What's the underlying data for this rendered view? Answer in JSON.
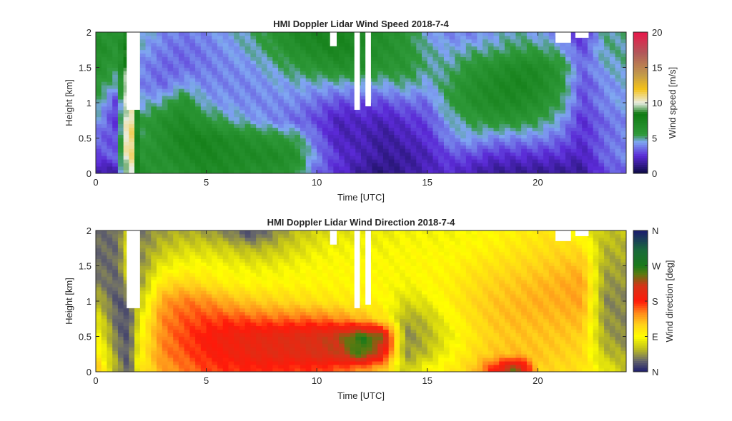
{
  "chart_data": [
    {
      "type": "heatmap",
      "title": "HMI Doppler Lidar Wind Speed  2018-7-4",
      "xlabel": "Time [UTC]",
      "ylabel": "Height [km]",
      "xlim": [
        0,
        24
      ],
      "ylim": [
        0,
        2
      ],
      "xticks": [
        "0",
        "5",
        "10",
        "15",
        "20"
      ],
      "yticks": [
        "0",
        "0.5",
        "1",
        "1.5",
        "2"
      ],
      "colorbar": {
        "label": "Wind speed [m/s]",
        "range": [
          0,
          20
        ],
        "ticks": [
          "0",
          "5",
          "10",
          "15",
          "20"
        ],
        "stops": [
          {
            "v": 0,
            "c": "#0a0a40"
          },
          {
            "v": 2.5,
            "c": "#5a2ad6"
          },
          {
            "v": 4.5,
            "c": "#7fa6f2"
          },
          {
            "v": 5.5,
            "c": "#2f9a3a"
          },
          {
            "v": 8.5,
            "c": "#0f7a12"
          },
          {
            "v": 10,
            "c": "#e9ede4"
          },
          {
            "v": 12,
            "c": "#f4c218"
          },
          {
            "v": 14,
            "c": "#c29a4a"
          },
          {
            "v": 17,
            "c": "#b05a5a"
          },
          {
            "v": 20,
            "c": "#e8174a"
          }
        ]
      },
      "time_h": [
        0,
        1,
        1.5,
        2,
        3,
        4,
        5,
        6,
        7,
        8,
        9,
        10,
        11,
        12,
        13,
        14,
        15,
        16,
        17,
        18,
        19,
        20,
        21,
        22,
        23,
        24
      ],
      "height_km": [
        0.05,
        0.25,
        0.5,
        0.75,
        1.0,
        1.25,
        1.5,
        1.75,
        1.95
      ],
      "values": [
        [
          1.5,
          3.0,
          3.5,
          4.5,
          5.5,
          6.0,
          6.5,
          7.0,
          6.5
        ],
        [
          2.0,
          3.5,
          3.0,
          2.5,
          2.5,
          4.5,
          5.5,
          6.0,
          6.0
        ],
        [
          11.5,
          12.5,
          13.0,
          12.5,
          12.0,
          11.5,
          10.0,
          9.0,
          8.0
        ],
        [
          6.5,
          6.0,
          5.5,
          5.5,
          4.5,
          4.0,
          4.0,
          4.5,
          5.0
        ],
        [
          6.0,
          6.5,
          6.5,
          6.5,
          5.0,
          3.5,
          3.5,
          3.8,
          4.0
        ],
        [
          6.5,
          7.0,
          7.5,
          7.0,
          6.5,
          4.5,
          3.5,
          3.5,
          3.8
        ],
        [
          7.0,
          7.5,
          7.5,
          6.0,
          4.5,
          4.0,
          3.8,
          3.8,
          4.0
        ],
        [
          7.0,
          7.0,
          7.0,
          5.0,
          4.2,
          4.0,
          4.0,
          4.2,
          4.5
        ],
        [
          6.5,
          7.0,
          6.5,
          4.5,
          4.0,
          4.0,
          4.2,
          4.8,
          5.0
        ],
        [
          6.5,
          7.0,
          6.0,
          4.0,
          4.0,
          4.3,
          4.8,
          5.5,
          6.0
        ],
        [
          6.0,
          6.5,
          5.5,
          3.5,
          4.0,
          4.5,
          5.5,
          6.5,
          7.0
        ],
        [
          3.5,
          4.0,
          3.5,
          3.0,
          3.5,
          4.5,
          6.0,
          7.0,
          7.5
        ],
        [
          2.5,
          2.5,
          2.0,
          2.0,
          3.0,
          4.5,
          6.5,
          7.5,
          7.5
        ],
        [
          1.5,
          2.0,
          2.0,
          2.2,
          3.0,
          4.5,
          6.5,
          7.0,
          7.0
        ],
        [
          1.0,
          1.5,
          1.5,
          2.0,
          3.0,
          4.5,
          6.0,
          6.5,
          6.5
        ],
        [
          1.5,
          1.5,
          2.0,
          2.5,
          3.5,
          5.0,
          6.0,
          6.0,
          6.0
        ],
        [
          2.0,
          2.0,
          2.5,
          3.0,
          3.5,
          4.5,
          5.0,
          5.0,
          4.5
        ],
        [
          2.5,
          3.0,
          4.0,
          4.5,
          5.5,
          5.5,
          5.0,
          4.5,
          4.0
        ],
        [
          2.0,
          3.0,
          4.5,
          5.5,
          6.5,
          6.5,
          6.0,
          5.0,
          4.0
        ],
        [
          1.5,
          2.5,
          4.0,
          6.0,
          7.0,
          7.0,
          6.5,
          5.0,
          4.5
        ],
        [
          1.5,
          2.5,
          4.0,
          6.0,
          7.0,
          7.5,
          7.0,
          5.5,
          5.0
        ],
        [
          1.5,
          2.5,
          4.0,
          5.5,
          6.5,
          7.0,
          7.0,
          5.5,
          4.5
        ],
        [
          1.5,
          2.5,
          3.5,
          4.5,
          5.5,
          6.0,
          6.0,
          4.8,
          4.0
        ],
        [
          1.5,
          2.0,
          2.5,
          2.5,
          3.0,
          3.0,
          3.5,
          3.0,
          2.5
        ],
        [
          3.0,
          3.5,
          3.5,
          3.5,
          4.0,
          4.0,
          4.5,
          5.0,
          5.0
        ],
        [
          3.5,
          4.0,
          4.0,
          4.0,
          4.5,
          4.5,
          5.0,
          5.0,
          5.0
        ]
      ]
    },
    {
      "type": "heatmap",
      "title": "HMI Doppler Lidar Wind Direction  2018-7-4",
      "xlabel": "Time [UTC]",
      "ylabel": "Height [km]",
      "xlim": [
        0,
        24
      ],
      "ylim": [
        0,
        2
      ],
      "xticks": [
        "0",
        "5",
        "10",
        "15",
        "20"
      ],
      "yticks": [
        "0",
        "0.5",
        "1",
        "1.5",
        "2"
      ],
      "colorbar": {
        "label": "Wind direction [deg]",
        "range": [
          0,
          360
        ],
        "ticks": [
          "N",
          "E",
          "S",
          "W",
          "N"
        ],
        "stops": [
          {
            "v": 0,
            "c": "#1a1a6e"
          },
          {
            "v": 30,
            "c": "#6b6b6b"
          },
          {
            "v": 60,
            "c": "#c2c21a"
          },
          {
            "v": 90,
            "c": "#ffff00"
          },
          {
            "v": 120,
            "c": "#ffd21a"
          },
          {
            "v": 150,
            "c": "#ff8c1a"
          },
          {
            "v": 180,
            "c": "#ff1a0a"
          },
          {
            "v": 220,
            "c": "#d43418"
          },
          {
            "v": 250,
            "c": "#5a7a10"
          },
          {
            "v": 270,
            "c": "#1a7a1a"
          },
          {
            "v": 310,
            "c": "#1a6a3a"
          },
          {
            "v": 360,
            "c": "#1a1a6e"
          }
        ]
      },
      "time_h": [
        0,
        1,
        1.5,
        2,
        3,
        4,
        5,
        6,
        7,
        8,
        9,
        10,
        11,
        12,
        13,
        14,
        15,
        16,
        17,
        18,
        19,
        20,
        21,
        22,
        23,
        24
      ],
      "height_km": [
        0.05,
        0.25,
        0.5,
        0.75,
        1.0,
        1.25,
        1.5,
        1.75,
        1.95
      ],
      "values": [
        [
          130,
          110,
          95,
          80,
          60,
          40,
          30,
          30,
          30
        ],
        [
          45,
          40,
          30,
          25,
          20,
          25,
          30,
          30,
          30
        ],
        [
          20,
          20,
          20,
          20,
          30,
          60,
          80,
          80,
          80
        ],
        [
          100,
          95,
          90,
          80,
          60,
          45,
          40,
          40,
          35
        ],
        [
          140,
          150,
          150,
          150,
          140,
          110,
          80,
          60,
          50
        ],
        [
          155,
          165,
          170,
          165,
          155,
          120,
          90,
          70,
          55
        ],
        [
          170,
          180,
          185,
          170,
          150,
          110,
          90,
          70,
          50
        ],
        [
          175,
          190,
          195,
          170,
          135,
          100,
          85,
          65,
          40
        ],
        [
          180,
          200,
          200,
          165,
          125,
          95,
          80,
          55,
          20
        ],
        [
          180,
          205,
          205,
          160,
          120,
          95,
          80,
          60,
          40
        ],
        [
          175,
          205,
          210,
          160,
          115,
          95,
          85,
          70,
          60
        ],
        [
          175,
          215,
          215,
          160,
          110,
          95,
          90,
          80,
          70
        ],
        [
          165,
          220,
          230,
          150,
          105,
          95,
          92,
          85,
          75
        ],
        [
          150,
          260,
          270,
          135,
          100,
          95,
          92,
          85,
          80
        ],
        [
          130,
          200,
          240,
          110,
          95,
          92,
          90,
          85,
          80
        ],
        [
          60,
          45,
          40,
          50,
          70,
          85,
          90,
          90,
          85
        ],
        [
          90,
          60,
          55,
          60,
          80,
          95,
          95,
          90,
          85
        ],
        [
          100,
          90,
          80,
          90,
          100,
          100,
          95,
          90,
          85
        ],
        [
          120,
          110,
          105,
          110,
          115,
          110,
          105,
          95,
          90
        ],
        [
          180,
          125,
          120,
          125,
          125,
          120,
          110,
          100,
          95
        ],
        [
          250,
          130,
          125,
          130,
          130,
          125,
          115,
          105,
          100
        ],
        [
          120,
          125,
          125,
          130,
          135,
          130,
          120,
          110,
          105
        ],
        [
          115,
          120,
          125,
          130,
          135,
          135,
          125,
          115,
          110
        ],
        [
          110,
          115,
          120,
          130,
          140,
          140,
          130,
          110,
          90
        ],
        [
          80,
          60,
          50,
          45,
          40,
          45,
          50,
          55,
          60
        ],
        [
          60,
          50,
          40,
          40,
          40,
          45,
          50,
          55,
          60
        ]
      ]
    }
  ]
}
